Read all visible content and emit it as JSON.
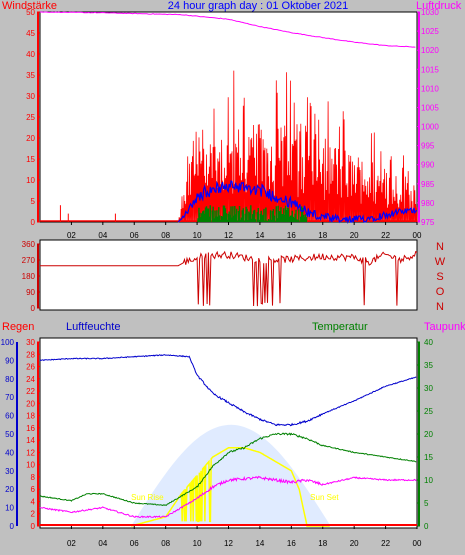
{
  "page": {
    "title": "24 hour graph day : 01 Oktober 2021",
    "background": "#c0c0c0",
    "plot_background": "#ffffff"
  },
  "colors": {
    "wind": "#ff0000",
    "gust": "#0000ff",
    "wind_avg": "#008000",
    "pressure": "#ff00ff",
    "direction": "#cc0000",
    "rain": "#ff0000",
    "rain_axis": "#0000cc",
    "humidity": "#0000cc",
    "temperature": "#008000",
    "dewpoint": "#ff00ff",
    "sun": "#ffff00",
    "sun_fill": "#ccddff"
  },
  "chart_data": [
    {
      "id": "wind_pressure",
      "type": "line",
      "title": "24 hour graph day : 01 Oktober 2021",
      "left_label": "Windstärke",
      "right_label": "Luftdruck",
      "x_ticks": [
        "02",
        "04",
        "06",
        "08",
        "10",
        "12",
        "14",
        "16",
        "18",
        "20",
        "22",
        "00"
      ],
      "y_left_ticks": [
        "50",
        "45",
        "40",
        "35",
        "30",
        "25",
        "20",
        "15",
        "10",
        "5",
        "0"
      ],
      "y_right_ticks": [
        "1030",
        "1025",
        "1020",
        "1015",
        "1010",
        "1005",
        "1000",
        "995",
        "990",
        "985",
        "980",
        "975"
      ],
      "ylim_left": [
        0,
        50
      ],
      "ylim_right": [
        975,
        1030
      ],
      "series": [
        {
          "id": "pressure",
          "x": [
            0,
            4,
            8,
            9,
            10,
            12,
            14,
            16,
            18,
            20,
            22,
            24
          ],
          "y": [
            1030,
            1029.8,
            1029.4,
            1029.3,
            1028.9,
            1028.1,
            1026.2,
            1024.6,
            1023.3,
            1022.1,
            1021.2,
            1020.8
          ]
        },
        {
          "id": "wind_spikes",
          "x": [
            1.3,
            1.8,
            4.8
          ],
          "y": [
            4,
            2,
            2
          ]
        }
      ],
      "wind_activity_hours": [
        8.8,
        24
      ]
    },
    {
      "id": "direction",
      "type": "line",
      "left_ticks": [
        "360",
        "270",
        "180",
        "90",
        "0"
      ],
      "right_labels": [
        "N",
        "W",
        "S",
        "O",
        "N"
      ],
      "ylim": [
        0,
        360
      ],
      "series": [
        {
          "id": "direction",
          "x": [
            0,
            8.8,
            9.2,
            10.5,
            12,
            14,
            16,
            18,
            20,
            21,
            22,
            23,
            24
          ],
          "y": [
            238,
            238,
            258,
            295,
            300,
            270,
            275,
            290,
            285,
            260,
            300,
            270,
            310
          ]
        }
      ]
    },
    {
      "id": "weather",
      "type": "line",
      "labels": {
        "rain": "Regen",
        "humidity": "Luftfeuchte",
        "temperature": "Temperatur",
        "dewpoint": "Taupunkt"
      },
      "sunrise": "Sun Rise",
      "sunset": "Sun Set",
      "y_humidity_ticks": [
        "100",
        "90",
        "80",
        "70",
        "60",
        "50",
        "40",
        "30",
        "20",
        "10",
        "0"
      ],
      "y_rain_ticks": [
        "30",
        "28",
        "26",
        "24",
        "22",
        "20",
        "18",
        "16",
        "14",
        "12",
        "10",
        "8",
        "6",
        "4",
        "2",
        "0"
      ],
      "y_temp_ticks": [
        "40",
        "35",
        "30",
        "25",
        "20",
        "15",
        "10",
        "5",
        "0"
      ],
      "ylim_humidity": [
        0,
        100
      ],
      "ylim_temp": [
        0,
        40
      ],
      "series": [
        {
          "id": "humidity",
          "x": [
            0,
            2,
            4,
            6,
            8,
            9.5,
            10,
            11,
            12,
            13,
            14,
            15,
            16,
            17,
            18,
            20,
            22,
            24
          ],
          "y": [
            90,
            91,
            91,
            92,
            93,
            92,
            82,
            72,
            67,
            62,
            58,
            55,
            55,
            57,
            61,
            68,
            76,
            81
          ]
        },
        {
          "id": "temperature",
          "x": [
            0,
            2,
            3,
            4,
            6,
            8,
            10,
            11,
            12,
            13,
            14,
            15,
            16,
            17,
            18,
            20,
            22,
            24
          ],
          "y": [
            6.5,
            5.5,
            7,
            7,
            5,
            4.5,
            8.5,
            13,
            16,
            17,
            19,
            20,
            20,
            19,
            17.5,
            16,
            15,
            14
          ]
        },
        {
          "id": "dewpoint",
          "x": [
            0,
            2,
            3,
            4,
            6,
            8,
            10,
            11,
            12,
            14,
            15,
            16,
            17,
            18,
            20,
            22,
            24
          ],
          "y": [
            4,
            3,
            3.5,
            4,
            2,
            2,
            6,
            8.5,
            10,
            10.5,
            10,
            9.5,
            10,
            9,
            10.5,
            10,
            10
          ]
        },
        {
          "id": "sun",
          "x": [
            5.8,
            8,
            9,
            10,
            11,
            12,
            13,
            14,
            15,
            16,
            16.5,
            17,
            18,
            18.5
          ],
          "y": [
            0,
            2,
            7,
            11,
            15,
            17,
            17,
            16,
            14,
            12,
            8,
            0,
            0,
            0
          ]
        }
      ]
    }
  ]
}
